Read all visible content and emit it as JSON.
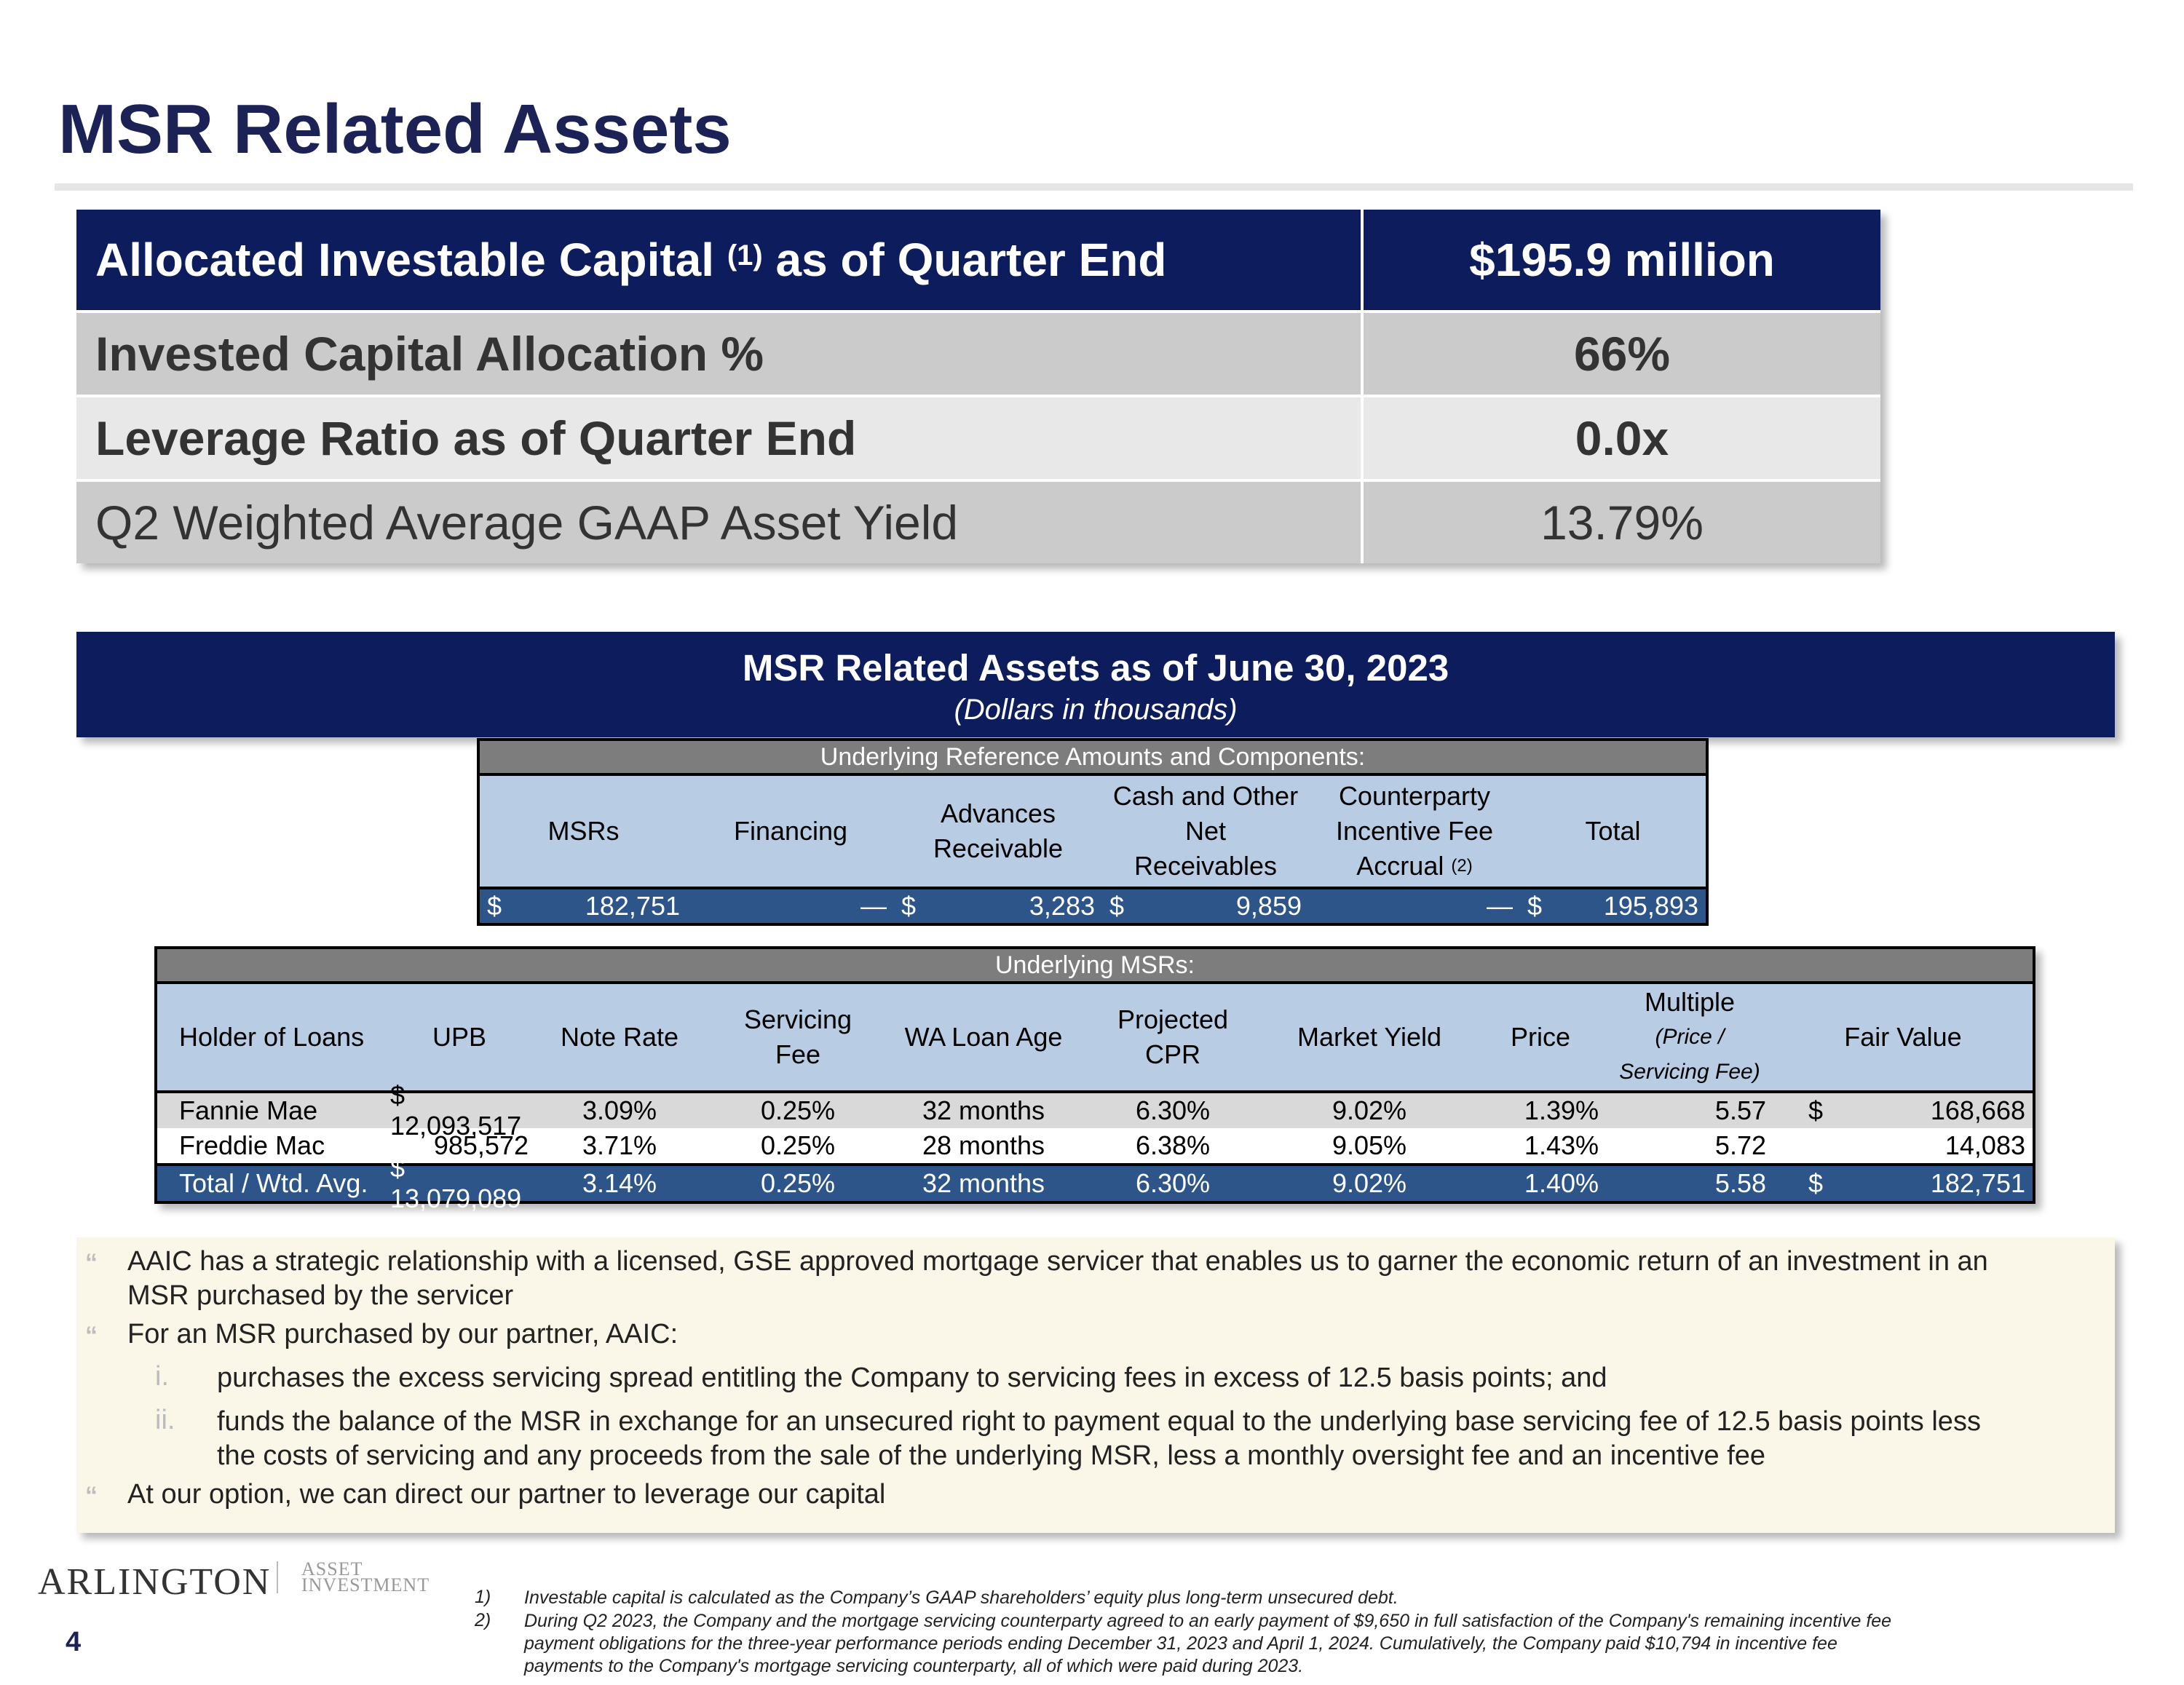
{
  "page_title": "MSR Related Assets",
  "summary": {
    "rows": [
      {
        "label": "Allocated Investable Capital ",
        "sup": "(1)",
        "label_after": " as of Quarter End",
        "value": "$195.9 million"
      },
      {
        "label": "Invested Capital Allocation %",
        "value": "66%"
      },
      {
        "label": "Leverage Ratio as of Quarter End",
        "value": "0.0x"
      },
      {
        "label": "Q2 Weighted Average GAAP Asset Yield",
        "value": "13.79%"
      }
    ]
  },
  "banner": {
    "title": "MSR Related Assets as of June 30, 2023",
    "subtitle": "(Dollars in thousands)"
  },
  "reference_table": {
    "header": "Underlying Reference Amounts and Components:",
    "columns": [
      "MSRs",
      "Financing",
      "Advances Receivable",
      "Cash and Other Net Receivables",
      "Counterparty Incentive Fee Accrual",
      "Total"
    ],
    "accrual_sup": "(2)",
    "values": {
      "msrs_cur": "$",
      "msrs": "182,751",
      "financing": "—",
      "advances_cur": "$",
      "advances": "3,283",
      "cash_cur": "$",
      "cash": "9,859",
      "accrual": "—",
      "total_cur": "$",
      "total": "195,893"
    }
  },
  "msr_table": {
    "header": "Underlying MSRs:",
    "columns": {
      "holder": "Holder of Loans",
      "upb": "UPB",
      "note_rate": "Note Rate",
      "servicing_fee": "Servicing Fee",
      "wa_loan_age": "WA Loan Age",
      "cpr": "Projected CPR",
      "market_yield": "Market Yield",
      "price": "Price",
      "multiple": "Multiple",
      "multiple_sub1": "(Price /",
      "multiple_sub2": "Servicing Fee)",
      "fair_value": "Fair Value"
    },
    "rows": [
      {
        "holder": "Fannie Mae",
        "upb": "$ 12,093,517",
        "note_rate": "3.09%",
        "servicing_fee": "0.25%",
        "wa_loan_age": "32 months",
        "cpr": "6.30%",
        "market_yield": "9.02%",
        "price": "1.39%",
        "multiple": "5.57",
        "fv_cur": "$",
        "fair_value": "168,668"
      },
      {
        "holder": "Freddie Mac",
        "upb": "985,572",
        "note_rate": "3.71%",
        "servicing_fee": "0.25%",
        "wa_loan_age": "28 months",
        "cpr": "6.38%",
        "market_yield": "9.05%",
        "price": "1.43%",
        "multiple": "5.72",
        "fv_cur": "",
        "fair_value": "14,083"
      },
      {
        "holder": "Total / Wtd. Avg.",
        "upb": "$ 13,079,089",
        "note_rate": "3.14%",
        "servicing_fee": "0.25%",
        "wa_loan_age": "32 months",
        "cpr": "6.30%",
        "market_yield": "9.02%",
        "price": "1.40%",
        "multiple": "5.58",
        "fv_cur": "$",
        "fair_value": "182,751"
      }
    ]
  },
  "bullets": {
    "marker": "“",
    "b1_line1": "AAIC has a strategic relationship with a licensed, GSE approved mortgage servicer that enables us to garner the economic return of an investment in an",
    "b1_line2": "MSR purchased by the servicer",
    "b2": "For an MSR purchased by our partner, AAIC:",
    "sub1_num": "i.",
    "sub1": "purchases the excess servicing spread entitling the Company to servicing fees in excess of 12.5 basis points; and",
    "sub2_num": "ii.",
    "sub2_line1": "funds the balance of the MSR in exchange for an unsecured right to payment equal to the underlying base servicing fee of 12.5 basis points less",
    "sub2_line2": "the costs of servicing and any proceeds from the sale of the underlying MSR, less a monthly oversight fee and an incentive fee",
    "b3": "At our option, we can direct our partner to leverage our capital"
  },
  "footer": {
    "logo": "ARLINGTON",
    "logo_sub1": "ASSET",
    "logo_sub2": "INVESTMENT",
    "page_number": "4",
    "fn1_num": "1)",
    "fn1": "Investable capital is calculated as the Company’s GAAP shareholders’ equity plus long-term unsecured debt.",
    "fn2_num": "2)",
    "fn2_line1": "During Q2 2023, the Company and the mortgage servicing counterparty agreed to an early payment of $9,650 in full satisfaction of the Company's remaining incentive fee",
    "fn2_line2": "payment obligations for the three-year performance periods ending December 31, 2023 and April 1, 2024.  Cumulatively, the Company paid $10,794 in incentive fee",
    "fn2_line3": "payments to the Company's mortgage servicing counterparty, all of which were paid during 2023."
  }
}
